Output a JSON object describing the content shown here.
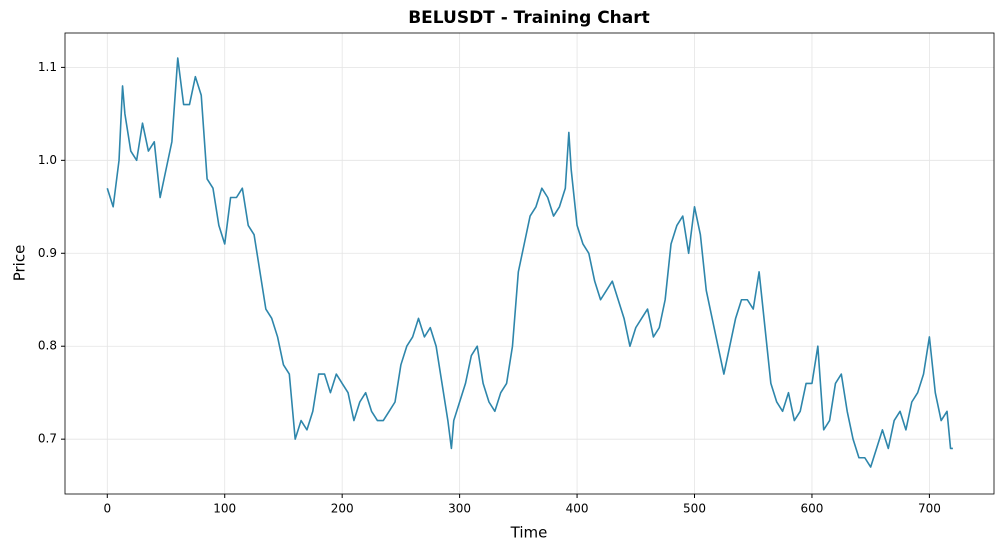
{
  "chart_data": {
    "type": "line",
    "title": "BELUSDT - Training Chart",
    "x_label": "Time",
    "y_label": "Price",
    "x": [
      0,
      5,
      10,
      13,
      15,
      20,
      25,
      30,
      35,
      40,
      45,
      50,
      55,
      60,
      65,
      70,
      75,
      80,
      85,
      90,
      95,
      100,
      105,
      110,
      115,
      120,
      125,
      130,
      135,
      140,
      145,
      150,
      155,
      160,
      165,
      170,
      175,
      180,
      185,
      190,
      195,
      200,
      205,
      210,
      215,
      220,
      225,
      230,
      235,
      240,
      245,
      250,
      255,
      260,
      265,
      270,
      275,
      280,
      285,
      290,
      293,
      295,
      300,
      305,
      310,
      315,
      320,
      325,
      330,
      335,
      340,
      345,
      350,
      355,
      360,
      365,
      370,
      375,
      380,
      385,
      390,
      393,
      395,
      400,
      405,
      410,
      415,
      420,
      425,
      430,
      435,
      440,
      445,
      450,
      455,
      460,
      465,
      470,
      475,
      480,
      485,
      490,
      495,
      500,
      505,
      510,
      515,
      520,
      525,
      530,
      535,
      540,
      545,
      550,
      555,
      560,
      565,
      570,
      575,
      580,
      585,
      590,
      595,
      600,
      605,
      610,
      615,
      620,
      625,
      630,
      635,
      640,
      645,
      650,
      655,
      660,
      665,
      670,
      675,
      680,
      685,
      690,
      695,
      700,
      705,
      710,
      715,
      718,
      720
    ],
    "series": [
      {
        "name": "Price",
        "color": "#2e86ab",
        "values": [
          0.97,
          0.95,
          1.0,
          1.08,
          1.05,
          1.01,
          1.0,
          1.04,
          1.01,
          1.02,
          0.96,
          0.99,
          1.02,
          1.11,
          1.06,
          1.06,
          1.09,
          1.07,
          0.98,
          0.97,
          0.93,
          0.91,
          0.96,
          0.96,
          0.97,
          0.93,
          0.92,
          0.88,
          0.84,
          0.83,
          0.81,
          0.78,
          0.77,
          0.7,
          0.72,
          0.71,
          0.73,
          0.77,
          0.77,
          0.75,
          0.77,
          0.76,
          0.75,
          0.72,
          0.74,
          0.75,
          0.73,
          0.72,
          0.72,
          0.73,
          0.74,
          0.78,
          0.8,
          0.81,
          0.83,
          0.81,
          0.82,
          0.8,
          0.76,
          0.72,
          0.69,
          0.72,
          0.74,
          0.76,
          0.79,
          0.8,
          0.76,
          0.74,
          0.73,
          0.75,
          0.76,
          0.8,
          0.88,
          0.91,
          0.94,
          0.95,
          0.97,
          0.96,
          0.94,
          0.95,
          0.97,
          1.03,
          0.99,
          0.93,
          0.91,
          0.9,
          0.87,
          0.85,
          0.86,
          0.87,
          0.85,
          0.83,
          0.8,
          0.82,
          0.83,
          0.84,
          0.81,
          0.82,
          0.85,
          0.91,
          0.93,
          0.94,
          0.9,
          0.95,
          0.92,
          0.86,
          0.83,
          0.8,
          0.77,
          0.8,
          0.83,
          0.85,
          0.85,
          0.84,
          0.88,
          0.82,
          0.76,
          0.74,
          0.73,
          0.75,
          0.72,
          0.73,
          0.76,
          0.76,
          0.8,
          0.71,
          0.72,
          0.76,
          0.77,
          0.73,
          0.7,
          0.68,
          0.68,
          0.67,
          0.69,
          0.71,
          0.69,
          0.72,
          0.73,
          0.71,
          0.74,
          0.75,
          0.77,
          0.81,
          0.75,
          0.72,
          0.73,
          0.69,
          0.69
        ]
      }
    ],
    "xlim": [
      -36,
      755
    ],
    "ylim": [
      0.641,
      1.137
    ],
    "xticks": [
      0,
      100,
      200,
      300,
      400,
      500,
      600,
      700
    ],
    "yticks": [
      0.7,
      0.8,
      0.9,
      {
        "value": 1,
        "label": "1.0"
      },
      1.1
    ],
    "grid": true
  }
}
